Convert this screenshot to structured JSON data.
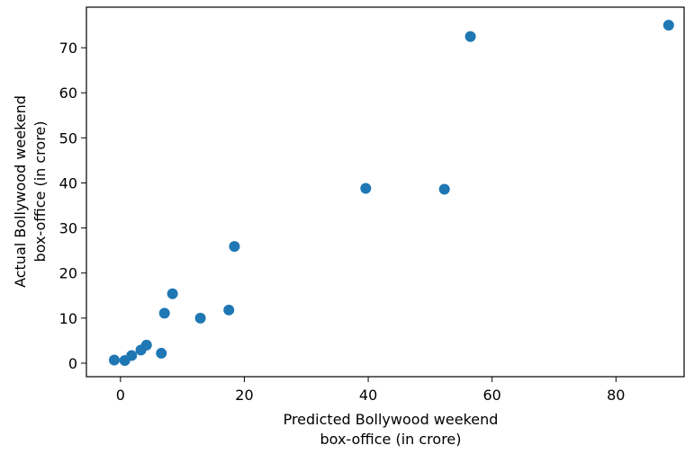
{
  "chart_data": {
    "type": "scatter",
    "xlabel": [
      "Predicted Bollywood weekend",
      "box-office (in crore)"
    ],
    "ylabel": [
      "Actual Bollywood weekend",
      "box-office (in crore)"
    ],
    "xlim": [
      -5.5,
      91
    ],
    "ylim": [
      -3,
      79
    ],
    "xticks": [
      0,
      20,
      40,
      60,
      80
    ],
    "yticks": [
      0,
      10,
      20,
      30,
      40,
      50,
      60,
      70
    ],
    "grid": false,
    "point_color": "#1f77b4",
    "points": [
      {
        "x": -1.0,
        "y": 0.7
      },
      {
        "x": 0.7,
        "y": 0.6
      },
      {
        "x": 1.8,
        "y": 1.7
      },
      {
        "x": 3.3,
        "y": 2.9
      },
      {
        "x": 4.2,
        "y": 4.0
      },
      {
        "x": 6.6,
        "y": 2.2
      },
      {
        "x": 7.1,
        "y": 11.1
      },
      {
        "x": 8.4,
        "y": 15.4
      },
      {
        "x": 12.9,
        "y": 10.0
      },
      {
        "x": 17.5,
        "y": 11.8
      },
      {
        "x": 18.4,
        "y": 25.9
      },
      {
        "x": 39.6,
        "y": 38.8
      },
      {
        "x": 52.3,
        "y": 38.6
      },
      {
        "x": 56.5,
        "y": 72.5
      },
      {
        "x": 88.5,
        "y": 75.0
      }
    ]
  }
}
